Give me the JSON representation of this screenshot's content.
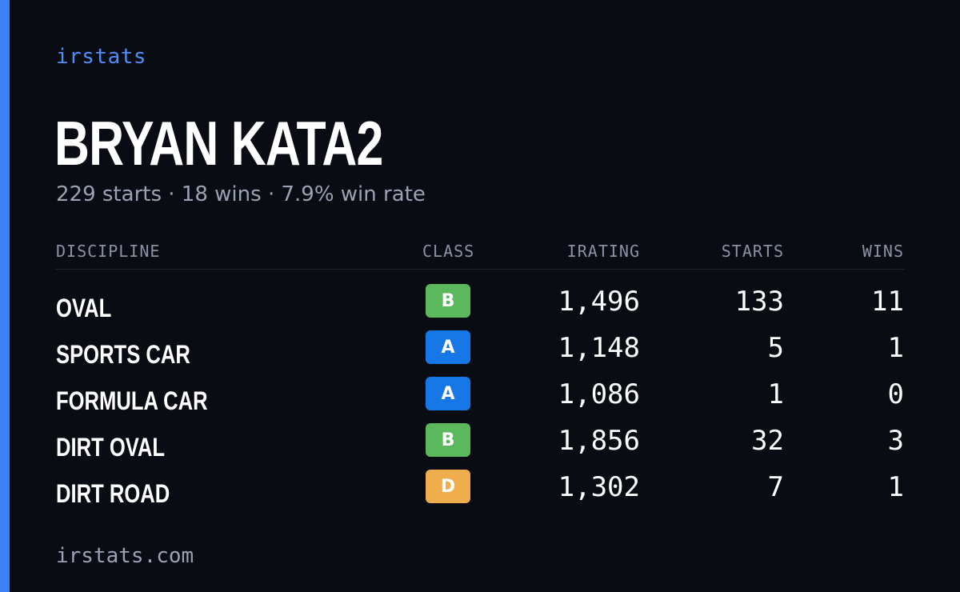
{
  "brand": "irstats",
  "player": {
    "name": "BRYAN KATA2",
    "summary": {
      "starts": "229 starts",
      "wins": "18 wins",
      "win_rate": "7.9% win rate",
      "separator": "·"
    }
  },
  "table": {
    "headers": {
      "discipline": "DISCIPLINE",
      "class": "CLASS",
      "irating": "IRATING",
      "starts": "STARTS",
      "wins": "WINS"
    },
    "rows": [
      {
        "discipline": "OVAL",
        "class": "B",
        "class_color": "#5cb85c",
        "irating": "1,496",
        "starts": "133",
        "wins": "11"
      },
      {
        "discipline": "SPORTS CAR",
        "class": "A",
        "class_color": "#1677e6",
        "irating": "1,148",
        "starts": "5",
        "wins": "1"
      },
      {
        "discipline": "FORMULA CAR",
        "class": "A",
        "class_color": "#1677e6",
        "irating": "1,086",
        "starts": "1",
        "wins": "0"
      },
      {
        "discipline": "DIRT OVAL",
        "class": "B",
        "class_color": "#5cb85c",
        "irating": "1,856",
        "starts": "32",
        "wins": "3"
      },
      {
        "discipline": "DIRT ROAD",
        "class": "D",
        "class_color": "#f0ad4e",
        "irating": "1,302",
        "starts": "7",
        "wins": "1"
      }
    ]
  },
  "footer": {
    "url": "irstats.com"
  },
  "colors": {
    "background": "#0a0c13",
    "accent": "#3b82f6"
  }
}
